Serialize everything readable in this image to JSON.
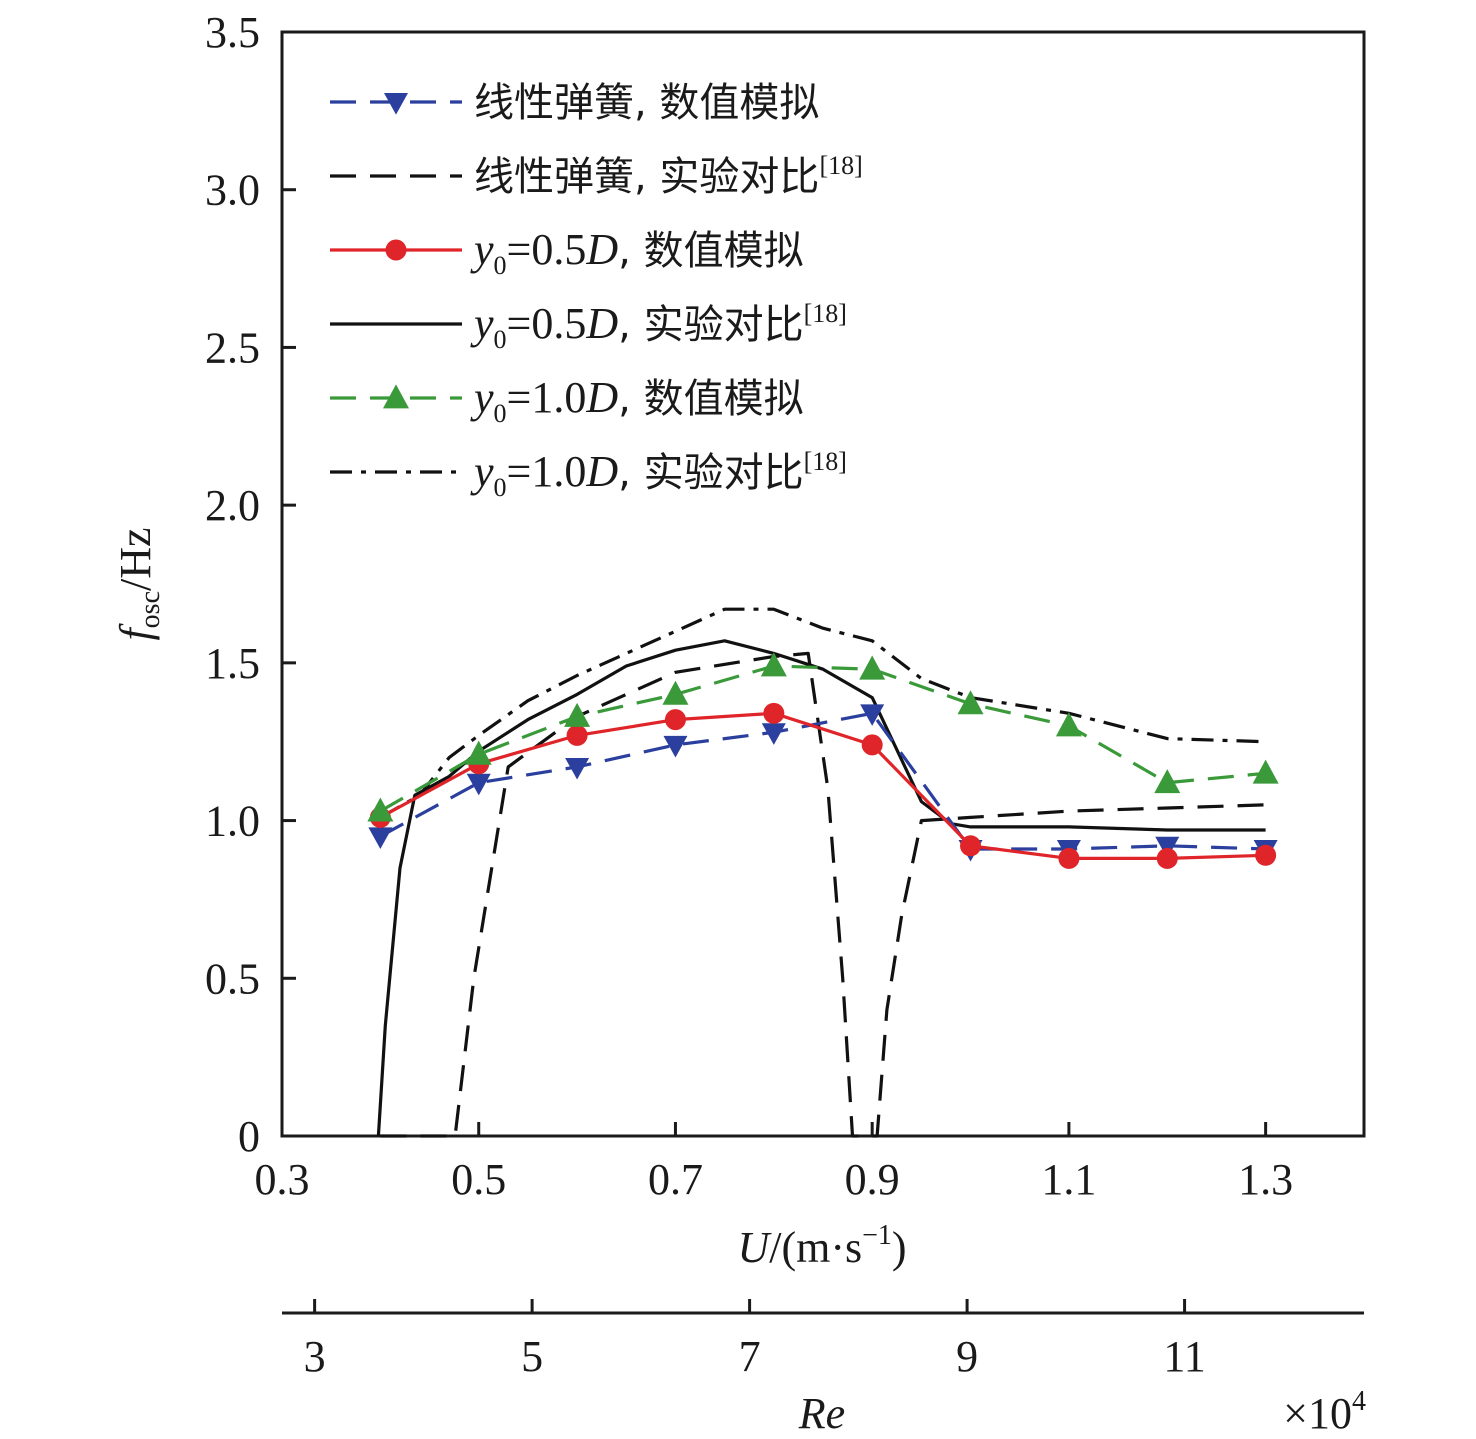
{
  "chart_data": {
    "type": "line",
    "xlabel": "U/(m·s⁻¹)",
    "ylabel": "f_osc/Hz",
    "ylabel_main": "f",
    "ylabel_sub": "osc",
    "ylabel_unit": "/Hz",
    "xlabel_var": "U",
    "xlabel_unit": "/(m·s",
    "xlabel_sup": "−1",
    "xlabel_close": ")",
    "secondary_xlabel": "Re",
    "secondary_multiplier_base": "×10",
    "secondary_multiplier_exp": "4",
    "xlim": [
      0.3,
      1.4
    ],
    "ylim": [
      0,
      3.5
    ],
    "xticks": [
      "0.3",
      "0.5",
      "0.7",
      "0.9",
      "1.1",
      "1.3"
    ],
    "xtick_values": [
      0.3,
      0.5,
      0.7,
      0.9,
      1.1,
      1.3
    ],
    "yticks": [
      "0",
      "0.5",
      "1.0",
      "1.5",
      "2.0",
      "2.5",
      "3.0",
      "3.5"
    ],
    "ytick_values": [
      0,
      0.5,
      1.0,
      1.5,
      2.0,
      2.5,
      3.0,
      3.5
    ],
    "secondary_xticks": [
      "3",
      "5",
      "7",
      "9",
      "11"
    ],
    "secondary_xtick_values": [
      3,
      5,
      7,
      9,
      11
    ],
    "secondary_xlim": [
      2.7,
      12.65
    ],
    "legend_position": "top-left",
    "series": [
      {
        "name": "线性弹簧, 数值模拟",
        "legend_parts": [
          {
            "t": "线性弹簧, 数值模拟"
          }
        ],
        "color": "#2b3f9e",
        "dash": "26 14",
        "marker": "triangle-down",
        "x": [
          0.4,
          0.5,
          0.6,
          0.7,
          0.8,
          0.9,
          1.0,
          1.1,
          1.2,
          1.3
        ],
        "y": [
          0.95,
          1.12,
          1.17,
          1.24,
          1.28,
          1.34,
          0.91,
          0.91,
          0.92,
          0.91
        ]
      },
      {
        "name": "线性弹簧, 实验对比[18]",
        "legend_parts": [
          {
            "t": "线性弹簧, 实验对比"
          },
          {
            "t": "[18]",
            "sup": true
          }
        ],
        "color": "#111111",
        "dash": "26 14",
        "marker": "none",
        "x": [
          0.4,
          0.476,
          0.495,
          0.53,
          0.6,
          0.7,
          0.8,
          0.835,
          0.855,
          0.87,
          0.88,
          0.89,
          0.905,
          0.915,
          0.93,
          0.95,
          1.0,
          1.1,
          1.2,
          1.3
        ],
        "y": [
          0,
          0,
          0.5,
          1.17,
          1.33,
          1.47,
          1.52,
          1.53,
          1.1,
          0.5,
          0,
          0,
          0,
          0.4,
          0.7,
          1.0,
          1.01,
          1.03,
          1.04,
          1.05
        ]
      },
      {
        "name": "y0=0.5D, 数值模拟",
        "legend_parts": [
          {
            "t": "y",
            "italic": true
          },
          {
            "t": "0",
            "sub": true
          },
          {
            "t": "=0.5"
          },
          {
            "t": "D",
            "italic": true
          },
          {
            "t": ", 数值模拟"
          }
        ],
        "color": "#e0252a",
        "dash": "",
        "marker": "circle",
        "x": [
          0.4,
          0.5,
          0.6,
          0.7,
          0.8,
          0.9,
          1.0,
          1.1,
          1.2,
          1.3
        ],
        "y": [
          1.01,
          1.18,
          1.27,
          1.32,
          1.34,
          1.24,
          0.92,
          0.88,
          0.88,
          0.89
        ]
      },
      {
        "name": "y0=0.5D, 实验对比[18]",
        "legend_parts": [
          {
            "t": "y",
            "italic": true
          },
          {
            "t": "0",
            "sub": true
          },
          {
            "t": "=0.5"
          },
          {
            "t": "D",
            "italic": true
          },
          {
            "t": ", 实验对比"
          },
          {
            "t": "[18]",
            "sup": true
          }
        ],
        "color": "#111111",
        "dash": "",
        "marker": "none",
        "x": [
          0.398,
          0.405,
          0.42,
          0.435,
          0.47,
          0.5,
          0.55,
          0.6,
          0.65,
          0.7,
          0.75,
          0.8,
          0.85,
          0.9,
          0.95,
          0.98,
          1.0,
          1.1,
          1.2,
          1.3
        ],
        "y": [
          0,
          0.35,
          0.85,
          1.08,
          1.14,
          1.22,
          1.32,
          1.4,
          1.49,
          1.54,
          1.57,
          1.53,
          1.48,
          1.39,
          1.06,
          0.99,
          0.98,
          0.98,
          0.97,
          0.97
        ]
      },
      {
        "name": "y0=1.0D, 数值模拟",
        "legend_parts": [
          {
            "t": "y",
            "italic": true
          },
          {
            "t": "0",
            "sub": true
          },
          {
            "t": "=1.0"
          },
          {
            "t": "D",
            "italic": true
          },
          {
            "t": ", 数值模拟"
          }
        ],
        "color": "#3a9a3a",
        "dash": "26 14",
        "marker": "triangle-up",
        "x": [
          0.4,
          0.5,
          0.6,
          0.7,
          0.8,
          0.9,
          1.0,
          1.1,
          1.2,
          1.3
        ],
        "y": [
          1.03,
          1.21,
          1.33,
          1.4,
          1.49,
          1.48,
          1.37,
          1.3,
          1.12,
          1.15
        ]
      },
      {
        "name": "y0=1.0D, 实验对比[18]",
        "legend_parts": [
          {
            "t": "y",
            "italic": true
          },
          {
            "t": "0",
            "sub": true
          },
          {
            "t": "=1.0"
          },
          {
            "t": "D",
            "italic": true
          },
          {
            "t": ", 实验对比"
          },
          {
            "t": "[18]",
            "sup": true
          }
        ],
        "color": "#111111",
        "dash": "22 9 5 9",
        "marker": "none",
        "x": [
          0.4,
          0.44,
          0.47,
          0.5,
          0.55,
          0.6,
          0.65,
          0.7,
          0.75,
          0.8,
          0.85,
          0.9,
          0.95,
          1.0,
          1.1,
          1.2,
          1.3
        ],
        "y": [
          1.01,
          1.08,
          1.2,
          1.27,
          1.38,
          1.46,
          1.53,
          1.6,
          1.67,
          1.67,
          1.61,
          1.57,
          1.45,
          1.39,
          1.34,
          1.26,
          1.25
        ]
      }
    ]
  }
}
